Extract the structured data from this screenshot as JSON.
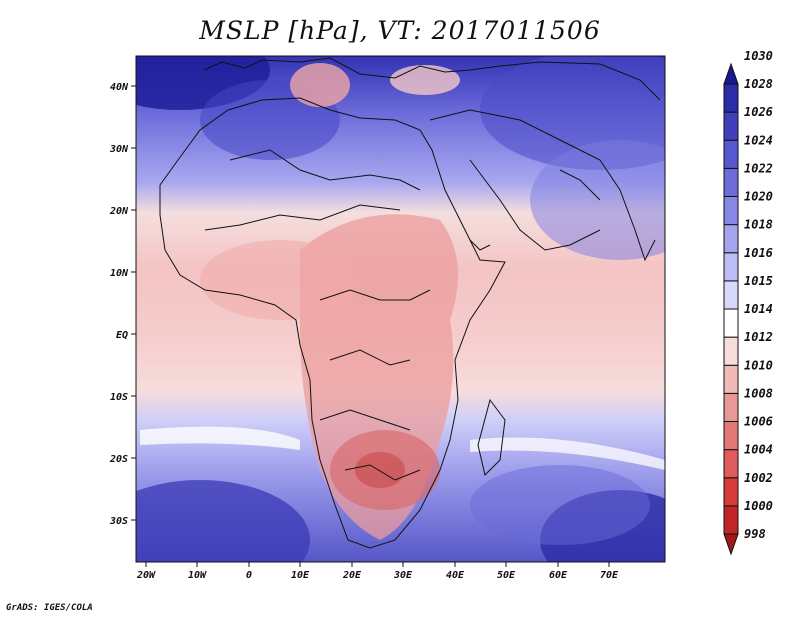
{
  "title": "MSLP [hPa], VT: 2017011506",
  "credit": "GrADS: IGES/COLA",
  "axes": {
    "x_ticks": [
      "20W",
      "10W",
      "0",
      "10E",
      "20E",
      "30E",
      "40E",
      "50E",
      "60E",
      "70E"
    ],
    "y_ticks": [
      "40N",
      "30N",
      "20N",
      "10N",
      "EQ",
      "10S",
      "20S",
      "30S"
    ]
  },
  "colorbar": {
    "levels": [
      "998",
      "1000",
      "1002",
      "1004",
      "1006",
      "1008",
      "1010",
      "1012",
      "1014",
      "1015",
      "1016",
      "1018",
      "1020",
      "1022",
      "1024",
      "1026",
      "1028",
      "1030"
    ],
    "colors": [
      "#a3171a",
      "#c02628",
      "#d83a3a",
      "#e05b5b",
      "#e27878",
      "#e99898",
      "#f2b9b9",
      "#f9dcdc",
      "#ffffff",
      "#d8d8fb",
      "#bdbdf5",
      "#a4a4ef",
      "#8787e6",
      "#6d6dda",
      "#5757cf",
      "#4040bd",
      "#2c2ca8",
      "#191992"
    ]
  },
  "map": {
    "lon_range": [
      -23,
      80
    ],
    "lat_range": [
      -37,
      45
    ],
    "land_color": "#b84a4a",
    "ocean_color": "#dde0ff"
  }
}
